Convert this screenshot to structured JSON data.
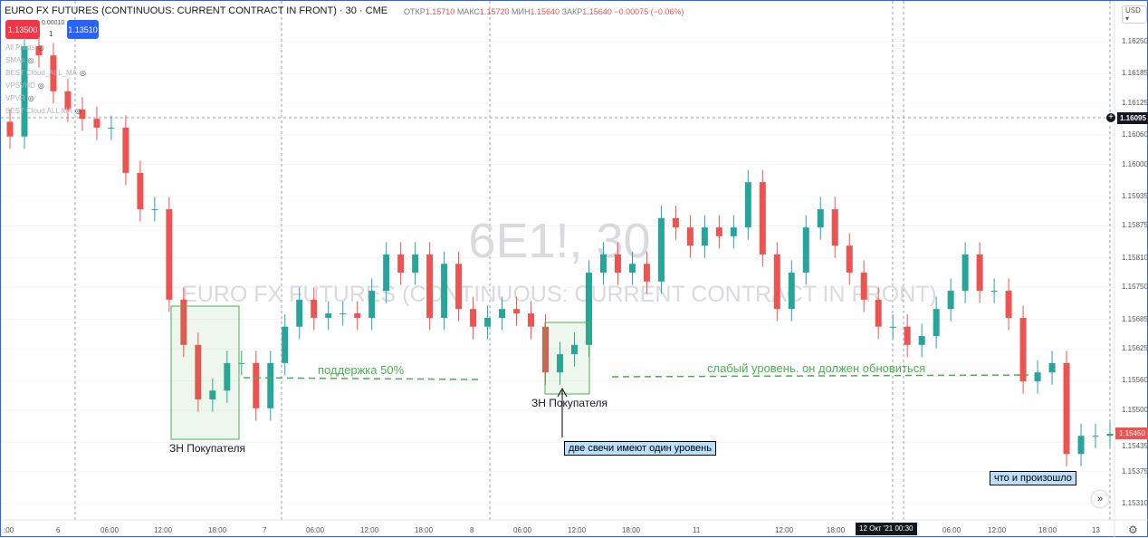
{
  "header": {
    "title": "EURO FX FUTURES (CONTINUOUS: CURRENT CONTRACT IN FRONT) · 30 · CME",
    "ohlc": {
      "o_label": "ОТКР",
      "o": "1.15710",
      "h_label": "МАКС",
      "h": "1.15720",
      "l_label": "МИН",
      "l": "1.15640",
      "c_label": "ЗАКР",
      "c": "1.15640",
      "change": "−0.00075 (−0.06%)"
    }
  },
  "trade": {
    "sell": "1.13500",
    "spread": "0.00010",
    "qty": "1",
    "buy": "1.13510"
  },
  "indicators": [
    "All Pivots",
    "SMAs",
    "BEST Cloud_ALL_MA",
    "VPSVHD",
    "VPVR",
    "BEST Cloud ALL MA"
  ],
  "watermark": {
    "symbol": "6E1!, 30",
    "name": "EURO FX FUTURES (CONTINUOUS: CURRENT CONTRACT IN FRONT)"
  },
  "currency": "USD",
  "colors": {
    "up": "#26a69a",
    "down": "#ef5350",
    "zone": "#4caf50",
    "accent": "#2962ff"
  },
  "chart_data": {
    "type": "candlestick",
    "ylim": [
      1.1528,
      1.1629
    ],
    "price_ticks": [
      "1.16250",
      "1.16185",
      "1.16125",
      "1.16060",
      "1.16000",
      "1.15935",
      "1.15875",
      "1.15810",
      "1.15750",
      "1.15685",
      "1.15625",
      "1.15560",
      "1.15500",
      "1.15435",
      "1.15375",
      "1.15310"
    ],
    "crosshair_price": "1.16095",
    "last_price": "1.15450",
    "time_ticks": [
      ":00",
      "6",
      "06:00",
      "12:00",
      "18:00",
      "7",
      "06:00",
      "12:00",
      "18:00",
      "8",
      "06:00",
      "12:00",
      "18:00",
      "11",
      "12:00",
      "18:00",
      "06:00",
      "12:00",
      "18:00",
      "13"
    ],
    "crosshair_time": "12 Окт '21   00:30",
    "closes": [
      1.16057,
      1.16241,
      1.16222,
      1.16149,
      1.16112,
      1.16093,
      1.16075,
      1.16075,
      1.15983,
      1.15909,
      1.15909,
      1.15725,
      1.15633,
      1.15522,
      1.1554,
      1.15596,
      1.15596,
      1.15504,
      1.15596,
      1.1567,
      1.15725,
      1.15688,
      1.15697,
      1.15697,
      1.15688,
      1.15743,
      1.15817,
      1.1578,
      1.15817,
      1.15688,
      1.15798,
      1.15706,
      1.1567,
      1.15688,
      1.15706,
      1.15697,
      1.1567,
      1.15577,
      1.15614,
      1.15633,
      1.1578,
      1.15817,
      1.1578,
      1.15798,
      1.15762,
      1.15891,
      1.15872,
      1.15835,
      1.15872,
      1.15854,
      1.15872,
      1.15964,
      1.15817,
      1.15706,
      1.1578,
      1.15872,
      1.15909,
      1.15835,
      1.1578,
      1.15725,
      1.1567,
      1.1567,
      1.15633,
      1.15651,
      1.15706,
      1.15743,
      1.15817,
      1.15743,
      1.15743,
      1.15688,
      1.15559,
      1.15577,
      1.15596,
      1.15411,
      1.15448,
      1.15448,
      1.15452
    ],
    "annotations": {
      "zone1": "ЗН Покупателя",
      "support": "поддержка 50%",
      "zone2": "ЗН Покупателя",
      "callout1": "две свечи имеют один уровень",
      "weak": "слабый уровень. он должен обновиться",
      "callout2": "что и произошло"
    }
  }
}
